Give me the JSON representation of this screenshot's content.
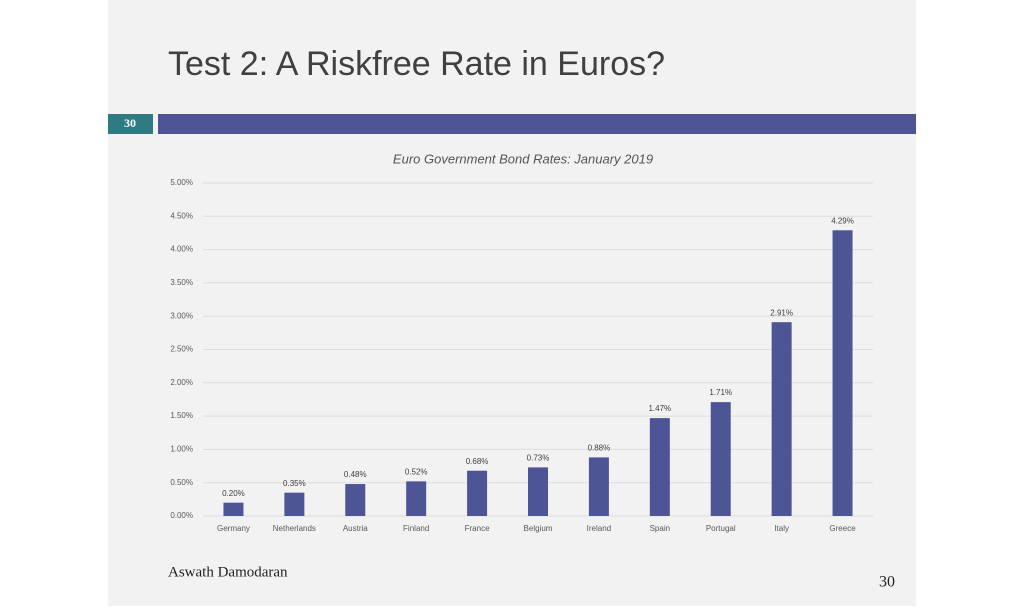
{
  "slide": {
    "title": "Test 2: A Riskfree Rate in Euros?",
    "slide_number": "30",
    "author": "Aswath Damodaran",
    "page_number": "30"
  },
  "chart_data": {
    "type": "bar",
    "title": "Euro Government Bond Rates: January 2019",
    "categories": [
      "Germany",
      "Netherlands",
      "Austria",
      "Finland",
      "France",
      "Belgium",
      "Ireland",
      "Spain",
      "Portugal",
      "Italy",
      "Greece"
    ],
    "values": [
      0.2,
      0.35,
      0.48,
      0.52,
      0.68,
      0.73,
      0.88,
      1.47,
      1.71,
      2.91,
      4.29
    ],
    "value_labels": [
      "0.20%",
      "0.35%",
      "0.48%",
      "0.52%",
      "0.68%",
      "0.73%",
      "0.88%",
      "1.47%",
      "1.71%",
      "2.91%",
      "4.29%"
    ],
    "color": "#4d5596",
    "ylim": [
      0,
      5
    ],
    "yticks": [
      {
        "value": 0,
        "label": "0.00%"
      },
      {
        "value": 0.5,
        "label": "0.50%"
      },
      {
        "value": 1,
        "label": "1.00%"
      },
      {
        "value": 1.5,
        "label": "1.50%"
      },
      {
        "value": 2,
        "label": "2.00%"
      },
      {
        "value": 2.5,
        "label": "2.50%"
      },
      {
        "value": 3,
        "label": "3.00%"
      },
      {
        "value": 3.5,
        "label": "3.50%"
      },
      {
        "value": 4,
        "label": "4.00%"
      },
      {
        "value": 4.5,
        "label": "4.50%"
      },
      {
        "value": 5,
        "label": "5.00%"
      }
    ],
    "grid": true
  }
}
